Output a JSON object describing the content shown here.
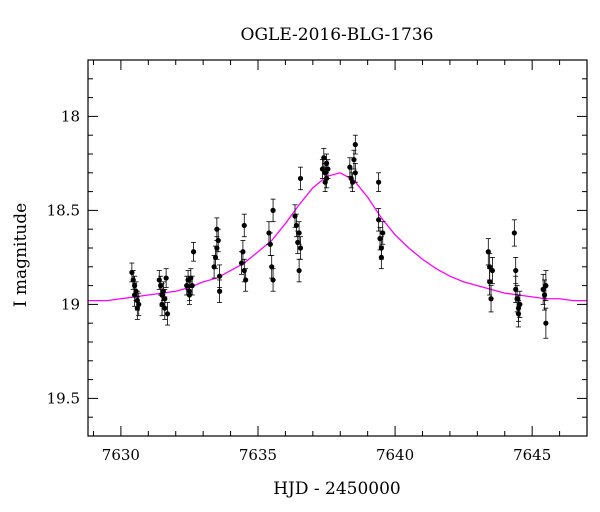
{
  "chart_data": {
    "type": "scatter",
    "title": "OGLE-2016-BLG-1736",
    "xlabel": "HJD - 2450000",
    "ylabel": "I magnitude",
    "xlim": [
      7628.8,
      7647.0
    ],
    "ylim": [
      19.7,
      17.7
    ],
    "y_inverted": true,
    "x_ticks": [
      7630,
      7635,
      7640,
      7645
    ],
    "y_ticks": [
      18,
      18.5,
      19,
      19.5
    ],
    "x_tick_labels": [
      "7630",
      "7635",
      "7640",
      "7645"
    ],
    "y_tick_labels": [
      "18",
      "18.5",
      "19",
      "19.5"
    ],
    "grid": false,
    "series": [
      {
        "kind": "points_with_errorbars",
        "color": "#000000",
        "points": [
          [
            7630.4,
            18.83,
            0.05
          ],
          [
            7630.45,
            18.87,
            0.05
          ],
          [
            7630.5,
            18.9,
            0.05
          ],
          [
            7630.5,
            18.95,
            0.06
          ],
          [
            7630.55,
            18.93,
            0.05
          ],
          [
            7630.6,
            18.98,
            0.05
          ],
          [
            7630.6,
            19.02,
            0.06
          ],
          [
            7630.65,
            19.0,
            0.06
          ],
          [
            7631.4,
            18.87,
            0.05
          ],
          [
            7631.45,
            18.9,
            0.05
          ],
          [
            7631.5,
            18.95,
            0.06
          ],
          [
            7631.5,
            19.0,
            0.06
          ],
          [
            7631.55,
            18.93,
            0.05
          ],
          [
            7631.6,
            18.97,
            0.05
          ],
          [
            7631.6,
            19.02,
            0.06
          ],
          [
            7631.65,
            18.86,
            0.05
          ],
          [
            7631.7,
            19.05,
            0.06
          ],
          [
            7632.4,
            18.9,
            0.05
          ],
          [
            7632.45,
            18.87,
            0.05
          ],
          [
            7632.5,
            18.93,
            0.05
          ],
          [
            7632.5,
            18.95,
            0.05
          ],
          [
            7632.55,
            18.86,
            0.05
          ],
          [
            7632.6,
            18.9,
            0.05
          ],
          [
            7632.65,
            18.72,
            0.05
          ],
          [
            7633.4,
            18.8,
            0.06
          ],
          [
            7633.45,
            18.75,
            0.06
          ],
          [
            7633.5,
            18.7,
            0.06
          ],
          [
            7633.5,
            18.6,
            0.06
          ],
          [
            7633.55,
            18.66,
            0.06
          ],
          [
            7633.6,
            18.85,
            0.06
          ],
          [
            7633.6,
            18.93,
            0.06
          ],
          [
            7634.4,
            18.78,
            0.06
          ],
          [
            7634.45,
            18.72,
            0.06
          ],
          [
            7634.5,
            18.82,
            0.06
          ],
          [
            7634.5,
            18.58,
            0.06
          ],
          [
            7634.55,
            18.87,
            0.06
          ],
          [
            7635.4,
            18.62,
            0.06
          ],
          [
            7635.45,
            18.68,
            0.06
          ],
          [
            7635.5,
            18.8,
            0.06
          ],
          [
            7635.55,
            18.87,
            0.06
          ],
          [
            7635.55,
            18.5,
            0.06
          ],
          [
            7636.35,
            18.53,
            0.06
          ],
          [
            7636.4,
            18.58,
            0.06
          ],
          [
            7636.45,
            18.67,
            0.06
          ],
          [
            7636.5,
            18.62,
            0.06
          ],
          [
            7636.5,
            18.82,
            0.06
          ],
          [
            7636.55,
            18.7,
            0.06
          ],
          [
            7636.55,
            18.33,
            0.06
          ],
          [
            7637.35,
            18.28,
            0.05
          ],
          [
            7637.4,
            18.22,
            0.05
          ],
          [
            7637.45,
            18.3,
            0.05
          ],
          [
            7637.45,
            18.35,
            0.05
          ],
          [
            7637.5,
            18.33,
            0.05
          ],
          [
            7637.5,
            18.25,
            0.05
          ],
          [
            7637.55,
            18.28,
            0.05
          ],
          [
            7638.35,
            18.27,
            0.05
          ],
          [
            7638.4,
            18.33,
            0.05
          ],
          [
            7638.45,
            18.35,
            0.05
          ],
          [
            7638.5,
            18.23,
            0.05
          ],
          [
            7638.55,
            18.15,
            0.05
          ],
          [
            7638.55,
            18.3,
            0.05
          ],
          [
            7639.4,
            18.35,
            0.05
          ],
          [
            7639.4,
            18.55,
            0.06
          ],
          [
            7639.45,
            18.65,
            0.06
          ],
          [
            7639.5,
            18.7,
            0.06
          ],
          [
            7639.5,
            18.75,
            0.06
          ],
          [
            7639.55,
            18.62,
            0.06
          ],
          [
            7643.4,
            18.72,
            0.07
          ],
          [
            7643.45,
            18.8,
            0.07
          ],
          [
            7643.45,
            18.88,
            0.07
          ],
          [
            7643.5,
            18.97,
            0.07
          ],
          [
            7643.55,
            18.82,
            0.07
          ],
          [
            7644.35,
            18.62,
            0.07
          ],
          [
            7644.4,
            18.82,
            0.07
          ],
          [
            7644.4,
            18.92,
            0.07
          ],
          [
            7644.45,
            18.97,
            0.07
          ],
          [
            7644.5,
            19.02,
            0.07
          ],
          [
            7644.5,
            19.05,
            0.07
          ],
          [
            7644.55,
            19.0,
            0.07
          ],
          [
            7645.4,
            18.92,
            0.08
          ],
          [
            7645.45,
            18.95,
            0.08
          ],
          [
            7645.5,
            19.1,
            0.08
          ],
          [
            7645.5,
            18.9,
            0.08
          ]
        ]
      },
      {
        "kind": "model_curve",
        "color": "#ff00ff",
        "x": [
          7628.8,
          7629.5,
          7630.0,
          7630.5,
          7631.0,
          7631.5,
          7632.0,
          7632.5,
          7633.0,
          7633.5,
          7634.0,
          7634.5,
          7635.0,
          7635.5,
          7636.0,
          7636.5,
          7637.0,
          7637.5,
          7638.0,
          7638.5,
          7639.0,
          7639.5,
          7640.0,
          7640.5,
          7641.0,
          7641.5,
          7642.0,
          7642.5,
          7643.0,
          7643.5,
          7644.0,
          7644.5,
          7645.0,
          7645.5,
          7646.0,
          7646.5,
          7647.0
        ],
        "y": [
          18.98,
          18.98,
          18.97,
          18.96,
          18.95,
          18.94,
          18.93,
          18.91,
          18.88,
          18.86,
          18.82,
          18.78,
          18.72,
          18.66,
          18.57,
          18.47,
          18.38,
          18.32,
          18.3,
          18.34,
          18.43,
          18.54,
          18.63,
          18.7,
          18.76,
          18.81,
          18.85,
          18.88,
          18.9,
          18.92,
          18.94,
          18.95,
          18.96,
          18.97,
          18.97,
          18.98,
          18.98
        ]
      }
    ]
  }
}
